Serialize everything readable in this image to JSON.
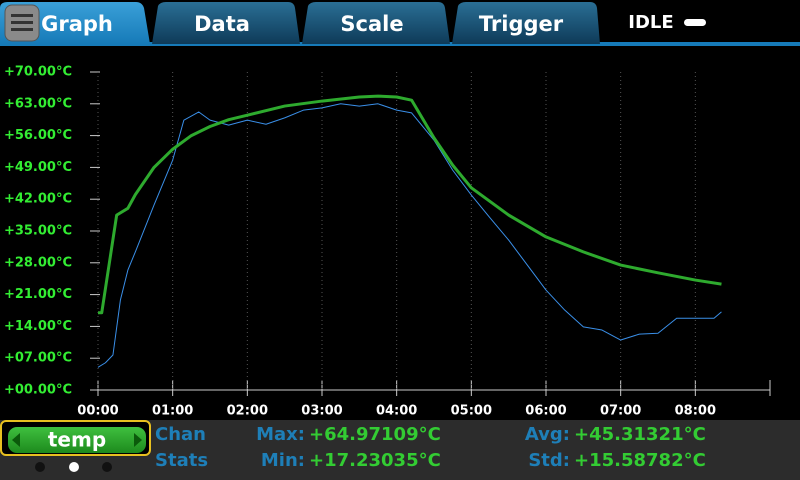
{
  "tabs": [
    "Graph",
    "Data",
    "Scale",
    "Trigger"
  ],
  "status": "IDLE",
  "channel": "temp",
  "stats_titles": [
    "Chan",
    "Stats"
  ],
  "stats": [
    {
      "label": "Max:",
      "value": "+64.97109°C"
    },
    {
      "label": "Min:",
      "value": "+17.23035°C"
    },
    {
      "label": "Avg:",
      "value": "+45.31321°C"
    },
    {
      "label": "Std:",
      "value": "+15.58782°C"
    }
  ],
  "chart_data": {
    "type": "line",
    "xlim": [
      0,
      9
    ],
    "ylim": [
      0,
      70
    ],
    "xticks": [
      {
        "value": 0,
        "label": "00:00"
      },
      {
        "value": 1,
        "label": "01:00"
      },
      {
        "value": 2,
        "label": "02:00"
      },
      {
        "value": 3,
        "label": "03:00"
      },
      {
        "value": 4,
        "label": "04:00"
      },
      {
        "value": 5,
        "label": "05:00"
      },
      {
        "value": 6,
        "label": "06:00"
      },
      {
        "value": 7,
        "label": "07:00"
      },
      {
        "value": 8,
        "label": "08:00"
      }
    ],
    "yticks": [
      {
        "value": 0,
        "label": "+00.00°C"
      },
      {
        "value": 7,
        "label": "+07.00°C"
      },
      {
        "value": 14,
        "label": "+14.00°C"
      },
      {
        "value": 21,
        "label": "+21.00°C"
      },
      {
        "value": 28,
        "label": "+28.00°C"
      },
      {
        "value": 35,
        "label": "+35.00°C"
      },
      {
        "value": 42,
        "label": "+42.00°C"
      },
      {
        "value": 49,
        "label": "+49.00°C"
      },
      {
        "value": 56,
        "label": "+56.00°C"
      },
      {
        "value": 63,
        "label": "+63.00°C"
      },
      {
        "value": 70,
        "label": "+70.00°C"
      }
    ],
    "grid": true,
    "series": [
      {
        "color": "#3a8fe8",
        "width": 1,
        "x": [
          0,
          0.1,
          0.2,
          0.3,
          0.4,
          0.5,
          0.75,
          1.0,
          1.15,
          1.35,
          1.5,
          1.75,
          2.0,
          2.25,
          2.5,
          2.75,
          3.0,
          3.25,
          3.5,
          3.75,
          4.0,
          4.2,
          4.5,
          4.75,
          5.0,
          5.25,
          5.5,
          5.75,
          6.0,
          6.25,
          6.5,
          6.75,
          7.0,
          7.25,
          7.5,
          7.75,
          8.0,
          8.25,
          8.35
        ],
        "values": [
          5,
          6,
          7.7,
          19.8,
          26.4,
          30.4,
          40.7,
          50.6,
          59.4,
          61.2,
          59.4,
          58.3,
          59.4,
          58.5,
          59.9,
          61.6,
          62.1,
          63,
          62.5,
          63,
          61.6,
          61,
          55,
          48.4,
          42.9,
          37.9,
          33,
          27.5,
          22,
          17.6,
          13.9,
          13.2,
          11,
          12.3,
          12.5,
          15.8,
          15.8,
          15.8,
          17.2
        ]
      },
      {
        "color": "#2eaa2e",
        "width": 3,
        "x": [
          0,
          0.05,
          0.25,
          0.4,
          0.5,
          0.75,
          1.0,
          1.25,
          1.5,
          1.75,
          2.0,
          2.5,
          3.0,
          3.5,
          3.75,
          4.0,
          4.2,
          4.5,
          4.75,
          5.0,
          5.5,
          6.0,
          6.5,
          7.0,
          7.5,
          8.0,
          8.35
        ],
        "values": [
          17,
          17,
          38.5,
          40,
          43,
          49,
          53,
          56,
          58,
          59.5,
          60.5,
          62.5,
          63.6,
          64.5,
          64.7,
          64.5,
          63.8,
          55.5,
          49.5,
          44.5,
          38.5,
          33.7,
          30.4,
          27.5,
          25.8,
          24.2,
          23.3
        ]
      }
    ]
  }
}
